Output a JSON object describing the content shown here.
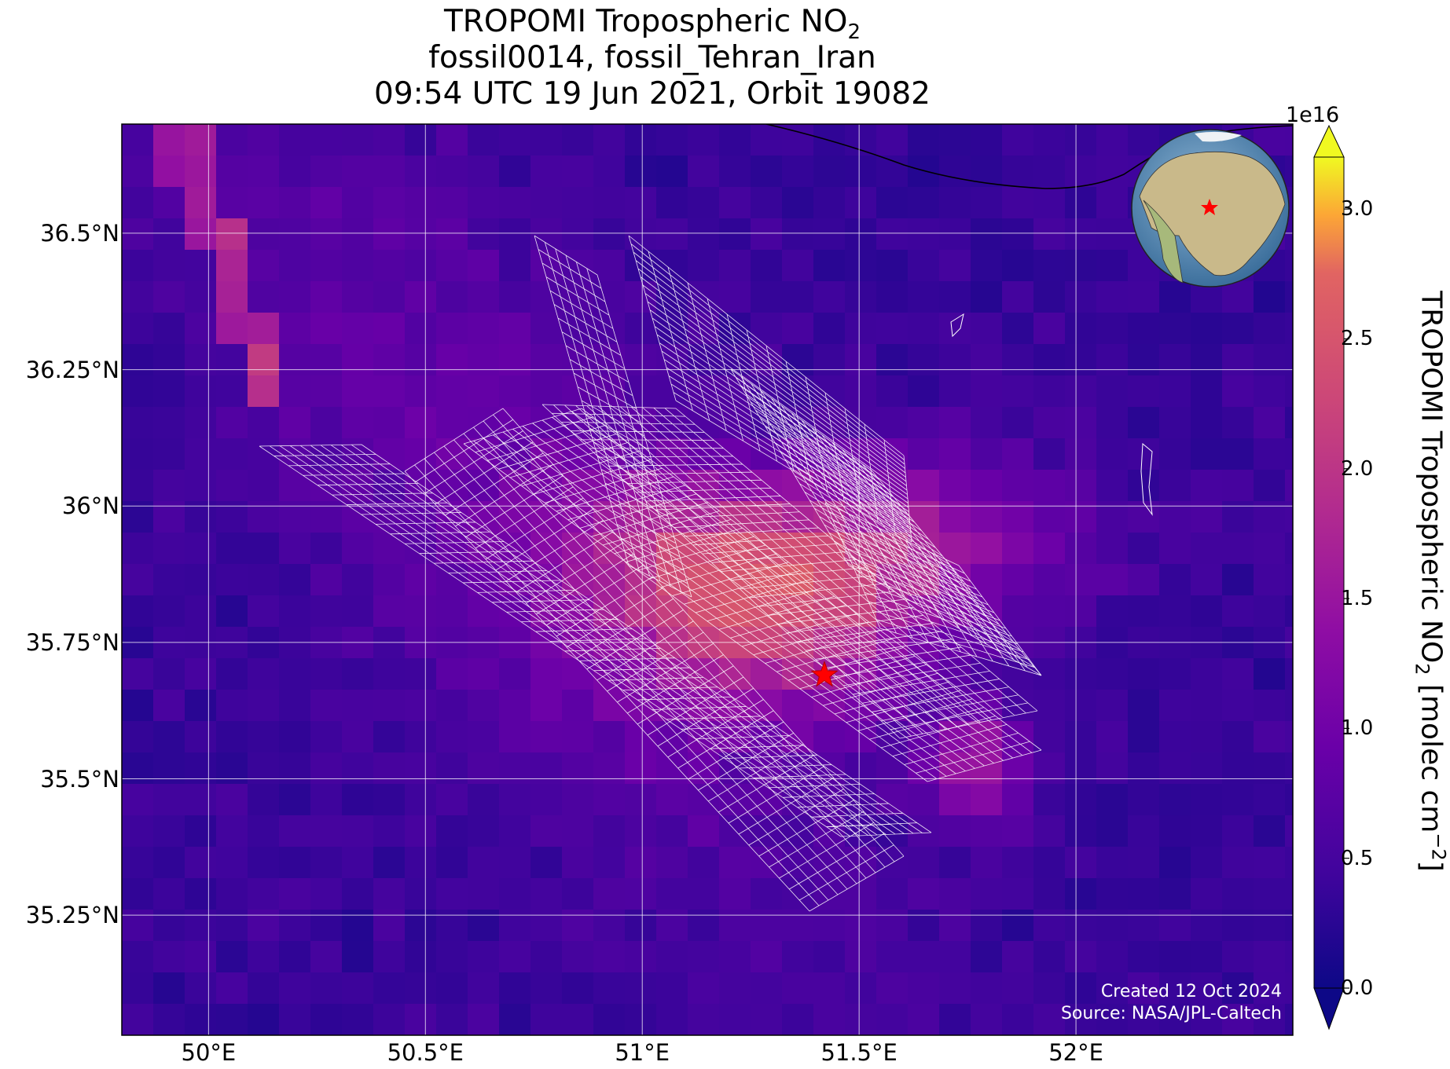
{
  "title": {
    "line1_prefix": "TROPOMI Tropospheric NO",
    "line1_sub": "2",
    "line2": "fossil0014, fossil_Tehran_Iran",
    "line3": "09:54 UTC 19 Jun 2021, Orbit 19082"
  },
  "map": {
    "lon_range": [
      49.8,
      52.5
    ],
    "lat_range": [
      35.03,
      36.7
    ],
    "lat_ticks": [
      {
        "value": 36.5,
        "label": "36.5°N"
      },
      {
        "value": 36.25,
        "label": "36.25°N"
      },
      {
        "value": 36.0,
        "label": "36°N"
      },
      {
        "value": 35.75,
        "label": "35.75°N"
      },
      {
        "value": 35.5,
        "label": "35.5°N"
      },
      {
        "value": 35.25,
        "label": "35.25°N"
      }
    ],
    "lon_ticks": [
      {
        "value": 50.0,
        "label": "50°E"
      },
      {
        "value": 50.5,
        "label": "50.5°E"
      },
      {
        "value": 51.0,
        "label": "51°E"
      },
      {
        "value": 51.5,
        "label": "51.5°E"
      },
      {
        "value": 52.0,
        "label": "52°E"
      }
    ],
    "gridlines": true,
    "target": {
      "name": "fossil_Tehran_Iran",
      "lon": 51.42,
      "lat": 35.69,
      "marker": "red-star"
    },
    "colormap": "plasma",
    "coastline_color": "#000000",
    "overlay_grid_color": "#ffffff",
    "inset_globe": {
      "position": "top-right",
      "marker": "red-star"
    }
  },
  "colorbar": {
    "exponent_label": "1e16",
    "range": [
      0.0,
      3.2
    ],
    "extend": "both",
    "ticks": [
      {
        "value": 0.0,
        "label": "0.0"
      },
      {
        "value": 0.5,
        "label": "0.5"
      },
      {
        "value": 1.0,
        "label": "1.0"
      },
      {
        "value": 1.5,
        "label": "1.5"
      },
      {
        "value": 2.0,
        "label": "2.0"
      },
      {
        "value": 2.5,
        "label": "2.5"
      },
      {
        "value": 3.0,
        "label": "3.0"
      }
    ],
    "label_prefix": "TROPOMI Tropospheric NO",
    "label_sub": "2",
    "label_mid": " [molec cm",
    "label_sup": "−2",
    "label_suffix": "]"
  },
  "credits": {
    "created": "Created 12 Oct 2024",
    "source": "Source: NASA/JPL-Caltech"
  }
}
